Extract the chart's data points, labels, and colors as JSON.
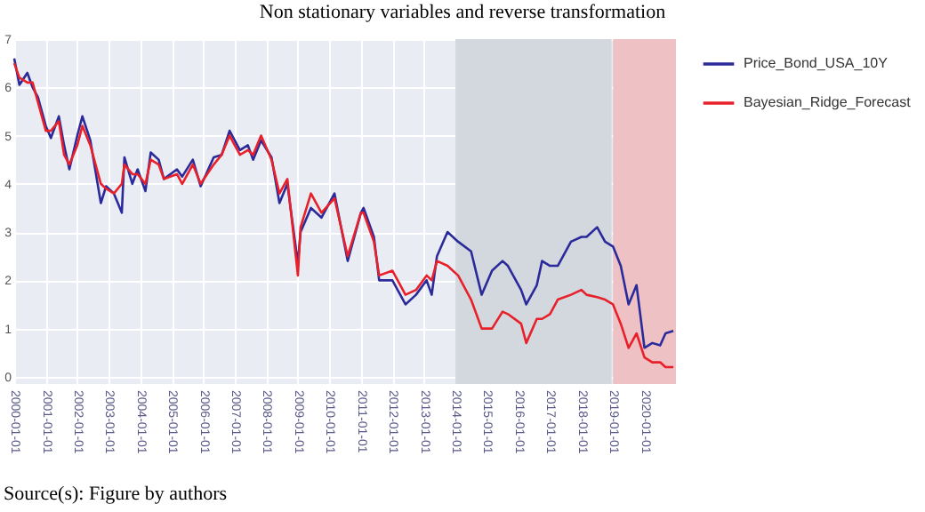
{
  "chart_data": {
    "type": "line",
    "title": "Non stationary variables and reverse transformation",
    "x": [
      "2000-01",
      "2000-03",
      "2000-06",
      "2000-08",
      "2000-10",
      "2001-01",
      "2001-03",
      "2001-06",
      "2001-08",
      "2001-10",
      "2002-01",
      "2002-03",
      "2002-06",
      "2002-10",
      "2002-12",
      "2003-03",
      "2003-06",
      "2003-07",
      "2003-10",
      "2003-12",
      "2004-03",
      "2004-05",
      "2004-08",
      "2004-10",
      "2005-03",
      "2005-05",
      "2005-09",
      "2005-12",
      "2006-05",
      "2006-08",
      "2006-11",
      "2007-03",
      "2007-06",
      "2007-08",
      "2007-11",
      "2008-03",
      "2008-06",
      "2008-09",
      "2009-01",
      "2009-02",
      "2009-06",
      "2009-10",
      "2010-03",
      "2010-08",
      "2011-01",
      "2011-02",
      "2011-06",
      "2011-08",
      "2012-01",
      "2012-06",
      "2012-10",
      "2013-02",
      "2013-04",
      "2013-06",
      "2013-10",
      "2014-02",
      "2014-07",
      "2014-11",
      "2015-03",
      "2015-07",
      "2015-09",
      "2016-02",
      "2016-04",
      "2016-08",
      "2016-10",
      "2017-01",
      "2017-04",
      "2017-09",
      "2018-01",
      "2018-03",
      "2018-07",
      "2018-10",
      "2019-01",
      "2019-04",
      "2019-07",
      "2019-10",
      "2020-01",
      "2020-04",
      "2020-07",
      "2020-09",
      "2020-12"
    ],
    "series": [
      {
        "name": "Price_Bond_USA_10Y",
        "color": "#2b2a9a",
        "values": [
          6.6,
          6.05,
          6.3,
          6.0,
          5.8,
          5.2,
          4.95,
          5.4,
          4.8,
          4.3,
          5.0,
          5.4,
          4.9,
          3.6,
          3.95,
          3.8,
          3.4,
          4.55,
          4.0,
          4.3,
          3.85,
          4.65,
          4.5,
          4.1,
          4.3,
          4.15,
          4.5,
          3.95,
          4.55,
          4.6,
          5.1,
          4.7,
          4.8,
          4.5,
          4.9,
          4.55,
          3.6,
          4.0,
          2.35,
          3.0,
          3.5,
          3.3,
          3.8,
          2.4,
          3.4,
          3.5,
          2.9,
          2.0,
          2.0,
          1.5,
          1.7,
          2.0,
          1.7,
          2.5,
          3.0,
          2.8,
          2.6,
          1.7,
          2.2,
          2.4,
          2.3,
          1.8,
          1.5,
          1.9,
          2.4,
          2.3,
          2.3,
          2.8,
          2.9,
          2.9,
          3.1,
          2.8,
          2.7,
          2.3,
          1.5,
          1.9,
          0.6,
          0.7,
          0.65,
          0.9,
          0.95
        ]
      },
      {
        "name": "Bayesian_Ridge_Forecast",
        "color": "#e8202a",
        "values": [
          6.5,
          6.2,
          6.1,
          6.1,
          5.7,
          5.1,
          5.1,
          5.3,
          4.6,
          4.4,
          4.8,
          5.2,
          4.8,
          4.0,
          3.9,
          3.8,
          4.0,
          4.4,
          4.2,
          4.2,
          4.0,
          4.5,
          4.4,
          4.1,
          4.2,
          4.0,
          4.4,
          4.0,
          4.4,
          4.6,
          5.0,
          4.6,
          4.7,
          4.6,
          5.0,
          4.5,
          3.8,
          4.1,
          2.1,
          3.1,
          3.8,
          3.4,
          3.7,
          2.5,
          3.4,
          3.4,
          2.8,
          2.1,
          2.2,
          1.7,
          1.8,
          2.1,
          2.0,
          2.4,
          2.3,
          2.1,
          1.6,
          1.0,
          1.0,
          1.35,
          1.3,
          1.1,
          0.7,
          1.2,
          1.2,
          1.3,
          1.6,
          1.7,
          1.8,
          1.7,
          1.65,
          1.6,
          1.5,
          1.1,
          0.6,
          0.9,
          0.4,
          0.3,
          0.3,
          0.2,
          0.2
        ]
      }
    ],
    "xlim": [
      "2000-01-01",
      "2020-12-31"
    ],
    "xticks": [
      "2000-01-01",
      "2001-01-01",
      "2002-01-01",
      "2003-01-01",
      "2004-01-01",
      "2005-01-01",
      "2006-01-01",
      "2007-01-01",
      "2008-01-01",
      "2009-01-01",
      "2010-01-01",
      "2011-01-01",
      "2012-01-01",
      "2013-01-01",
      "2014-01-01",
      "2015-01-01",
      "2016-01-01",
      "2017-01-01",
      "2018-01-01",
      "2019-01-01",
      "2020-01-01"
    ],
    "ylim": [
      -0.15,
      7
    ],
    "yticks": [
      0,
      1,
      2,
      3,
      4,
      5,
      6,
      7
    ],
    "bands": [
      {
        "axis": "x",
        "from": "2014-01-01",
        "to": "2018-12-15",
        "color": "#d3d7de"
      },
      {
        "axis": "x",
        "from": "2019-01-01",
        "to": "2020-12-31",
        "color": "#eec2c4"
      }
    ],
    "grid": true,
    "legend": "right",
    "line_style": "solid",
    "marker": "none",
    "annotations": [
      "Source(s): Figure by authors"
    ]
  }
}
